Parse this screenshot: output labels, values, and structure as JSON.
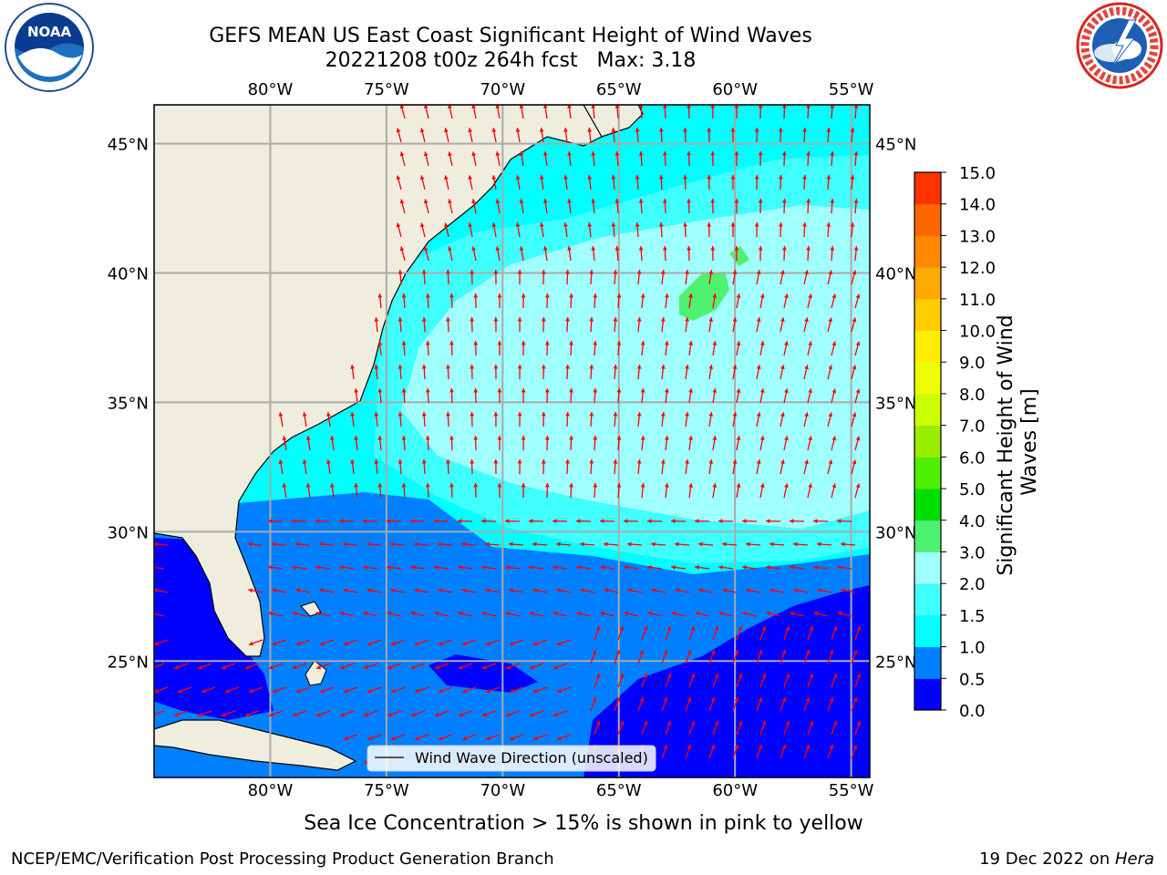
{
  "title": {
    "line1": "GEFS MEAN US East Coast Significant Height of Wind Waves",
    "line2": "20221208 t00z 264h fcst   Max: 3.18"
  },
  "logos": {
    "left": {
      "text": "NOAA",
      "ring_text": "NATIONAL OCEANIC AND ATMOSPHERIC ADMINISTRATION · U.S. DEPARTMENT OF COMMERCE"
    },
    "right": {
      "ring_text": "NATIONAL WEATHER SERVICE"
    }
  },
  "map": {
    "lon_range": [
      -85,
      -54.2
    ],
    "lat_range": [
      20.5,
      46.5
    ],
    "lon_ticks": [
      -80,
      -75,
      -70,
      -65,
      -60,
      -55
    ],
    "lat_ticks": [
      45,
      40,
      35,
      30,
      25
    ],
    "lon_labels": [
      "80°W",
      "75°W",
      "70°W",
      "65°W",
      "60°W",
      "55°W"
    ],
    "lat_labels": [
      "45°N",
      "40°N",
      "35°N",
      "30°N",
      "25°N"
    ],
    "grid": true,
    "land_color": "#efedde",
    "legend_label": "Wind Wave Direction (unscaled)",
    "arrow_color": "#ff0000"
  },
  "colorbar": {
    "label": "Significant Height of Wind Waves [m]",
    "label_lines": [
      "Significant Height of Wind",
      "Waves [m]"
    ],
    "ticks": [
      "0.0",
      "0.5",
      "1.0",
      "1.5",
      "2.0",
      "3.0",
      "4.0",
      "5.0",
      "6.0",
      "7.0",
      "8.0",
      "9.0",
      "10.0",
      "11.0",
      "12.0",
      "13.0",
      "14.0",
      "15.0"
    ],
    "colors": [
      "#0000ff",
      "#0080ff",
      "#00ffff",
      "#40ffff",
      "#a0ffff",
      "#50f070",
      "#00dd00",
      "#50ee00",
      "#99ee00",
      "#ccff00",
      "#eeff00",
      "#ffee00",
      "#ffcc00",
      "#ffaa00",
      "#ff8800",
      "#ff6600",
      "#ff3300",
      "#ff0000"
    ]
  },
  "caption": "Sea Ice Concentration > 15% is shown in pink to yellow",
  "footer": {
    "left": "NCEP/EMC/Verification Post Processing Product Generation Branch",
    "right_prefix": "19 Dec 2022 on ",
    "right_machine": "Hera"
  }
}
